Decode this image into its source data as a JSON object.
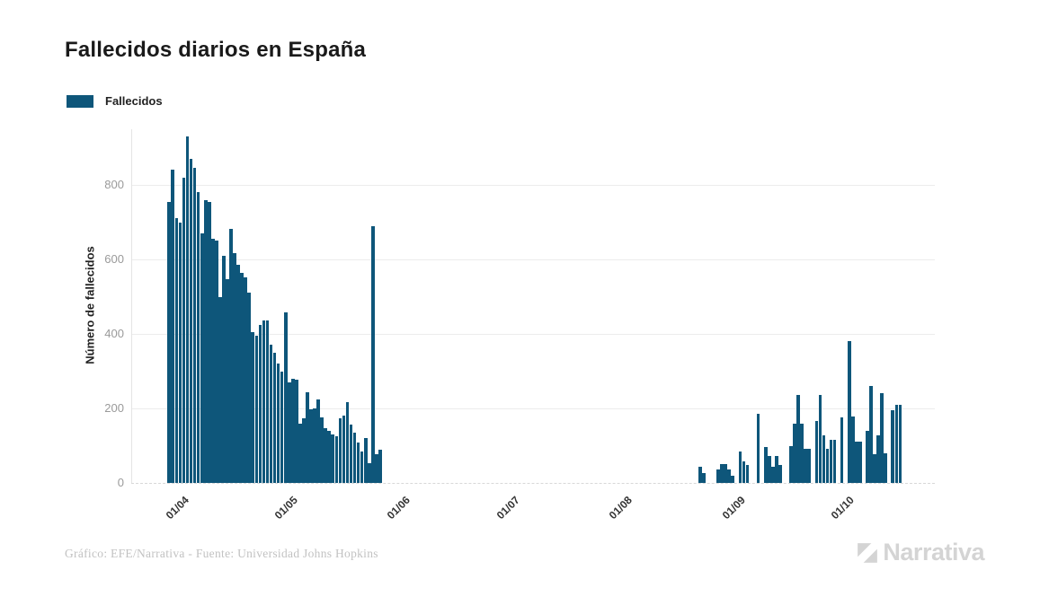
{
  "title": "Fallecidos diarios en España",
  "legend": {
    "label": "Fallecidos",
    "swatch_color": "#0e567a"
  },
  "footer": {
    "credit": "Gráfico: EFE/Narrativa - Fuente: Universidad Johns Hopkins",
    "brand": "Narrativa"
  },
  "colors": {
    "bar": "#0e567a",
    "grid": "#ececec",
    "axis_text": "#9a9a9a",
    "title_text": "#1a1a1a",
    "footer_text": "#c2c2c2"
  },
  "chart_data": {
    "type": "bar",
    "title": "Fallecidos diarios en España",
    "xlabel": "",
    "ylabel": "Número de fallecidos",
    "legend": [
      "Fallecidos"
    ],
    "legend_position": "top-left",
    "grid": true,
    "y_ticks": [
      0,
      200,
      400,
      600,
      800
    ],
    "ylim": [
      0,
      950
    ],
    "x_domain": [
      "2020-03-18",
      "2020-10-25"
    ],
    "x_ticks": [
      {
        "label": "01/04",
        "date": "2020-04-01"
      },
      {
        "label": "01/05",
        "date": "2020-05-01"
      },
      {
        "label": "01/06",
        "date": "2020-06-01"
      },
      {
        "label": "01/07",
        "date": "2020-07-01"
      },
      {
        "label": "01/08",
        "date": "2020-08-01"
      },
      {
        "label": "01/09",
        "date": "2020-09-01"
      },
      {
        "label": "01/10",
        "date": "2020-10-01"
      }
    ],
    "series": [
      {
        "name": "Fallecidos",
        "color": "#0e567a",
        "unit": "fallecidos por día",
        "segments": [
          {
            "start_date": "2020-03-28",
            "daily_values": [
              755,
              840,
              710,
              700,
              820,
              930,
              870,
              845,
              780,
              670,
              760,
              755,
              655,
              650,
              500,
              610,
              548,
              683,
              616,
              585,
              565,
              553,
              510,
              405,
              395,
              425,
              437,
              435,
              371,
              350,
              320,
              300,
              458,
              270,
              280,
              278,
              160,
              173,
              243,
              197,
              200,
              225,
              175,
              147,
              140,
              130,
              125,
              173,
              181,
              218,
              157,
              134,
              108,
              84,
              120,
              54,
              688,
              76,
              88
            ]
          },
          {
            "start_date": "2020-08-21",
            "daily_values": [
              44,
              27,
              0,
              0,
              0,
              35,
              50,
              50,
              36,
              20,
              0,
              84,
              58,
              48,
              0,
              0,
              185,
              0,
              96,
              72,
              44,
              72,
              48,
              0,
              0,
              100,
              160,
              237,
              160,
              92,
              92,
              0,
              166,
              237,
              128,
              92,
              116,
              115,
              0,
              177,
              0,
              380,
              179,
              112,
              110,
              0,
              140,
              260,
              76,
              128,
              240,
              80,
              0,
              195,
              210,
              210
            ]
          }
        ]
      }
    ]
  }
}
